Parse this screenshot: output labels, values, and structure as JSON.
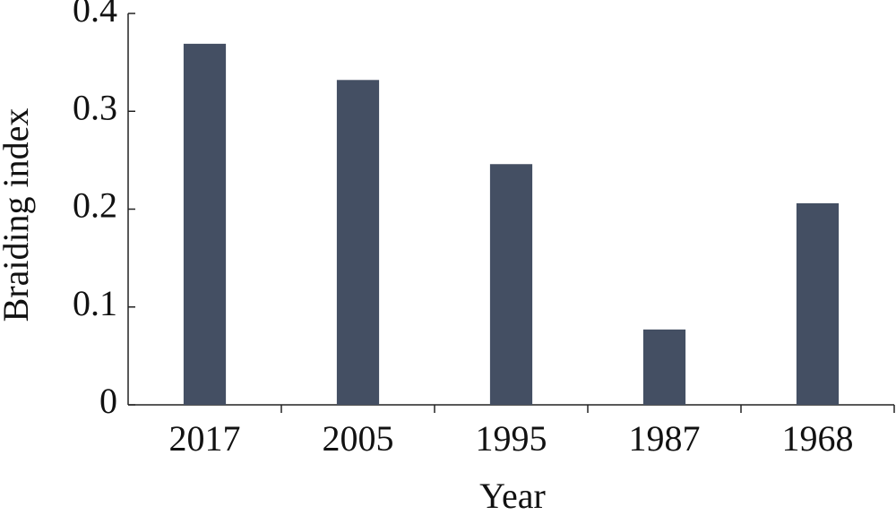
{
  "chart_data": {
    "type": "bar",
    "x_label": "Year",
    "y_label": "Braiding index",
    "categories": [
      "2017",
      "2005",
      "1995",
      "1987",
      "1968"
    ],
    "values": [
      0.369,
      0.332,
      0.246,
      0.077,
      0.206
    ],
    "color": "#444f63",
    "ylim": [
      0,
      0.4
    ],
    "yticks": [
      0,
      0.1,
      0.2,
      0.3,
      0.4
    ],
    "grid": false
  }
}
